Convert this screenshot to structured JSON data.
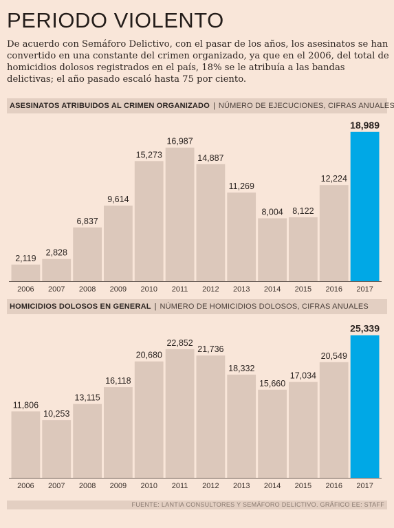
{
  "header": {
    "title": "PERIODO VIOLENTO",
    "intro": "De acuerdo con Semáforo Delictivo, con el pasar de los años, los asesinatos se han convertido en una constante del crimen organizado, ya que en el 2006, del total de homicidios dolosos registrados en el país, 18% se le atribuía a las bandas delictivas; el año pasado escaló hasta 75 por ciento."
  },
  "sections": [
    {
      "title": "ASESINATOS ATRIBUIDOS AL CRIMEN ORGANIZADO",
      "separator": "|",
      "subtitle": "NÚMERO DE EJECUCIONES, CIFRAS ANUALES"
    },
    {
      "title": "HOMICIDIOS DOLOSOS EN GENERAL",
      "separator": "|",
      "subtitle": "NÚMERO DE HOMICIDIOS DOLOSOS, CIFRAS ANUALES"
    }
  ],
  "colors": {
    "bar": "#dcc8bb",
    "highlight": "#00a8e6",
    "axis": "#6b5e57"
  },
  "chart_data": [
    {
      "type": "bar",
      "title": "ASESINATOS ATRIBUIDOS AL CRIMEN ORGANIZADO",
      "subtitle": "NÚMERO DE EJECUCIONES, CIFRAS ANUALES",
      "categories": [
        "2006",
        "2007",
        "2008",
        "2009",
        "2010",
        "2011",
        "2012",
        "2013",
        "2014",
        "2015",
        "2016",
        "2017"
      ],
      "values": [
        2119,
        2828,
        6837,
        9614,
        15273,
        16987,
        14887,
        11269,
        8004,
        8122,
        12224,
        18989
      ],
      "value_labels": [
        "2,119",
        "2,828",
        "6,837",
        "9,614",
        "15,273",
        "16,987",
        "14,887",
        "11,269",
        "8,004",
        "8,122",
        "12,224",
        "18,989"
      ],
      "highlight_category": "2017",
      "ylim": [
        0,
        19500
      ],
      "grid": false,
      "legend": "none"
    },
    {
      "type": "bar",
      "title": "HOMICIDIOS DOLOSOS EN GENERAL",
      "subtitle": "NÚMERO DE HOMICIDIOS DOLOSOS, CIFRAS ANUALES",
      "categories": [
        "2006",
        "2007",
        "2008",
        "2009",
        "2010",
        "2011",
        "2012",
        "2013",
        "2014",
        "2015",
        "2016",
        "2017"
      ],
      "values": [
        11806,
        10253,
        13115,
        16118,
        20680,
        22852,
        21736,
        18332,
        15660,
        17034,
        20549,
        25339
      ],
      "value_labels": [
        "11,806",
        "10,253",
        "13,115",
        "16,118",
        "20,680",
        "22,852",
        "21,736",
        "18,332",
        "15,660",
        "17,034",
        "20,549",
        "25,339"
      ],
      "highlight_category": "2017",
      "ylim": [
        0,
        25900
      ],
      "grid": false,
      "legend": "none"
    }
  ],
  "footer": {
    "source": "FUENTE: LANTIA CONSULTORES Y SEMÁFORO DELICTIVO. GRÁFICO EE: STAFF"
  }
}
